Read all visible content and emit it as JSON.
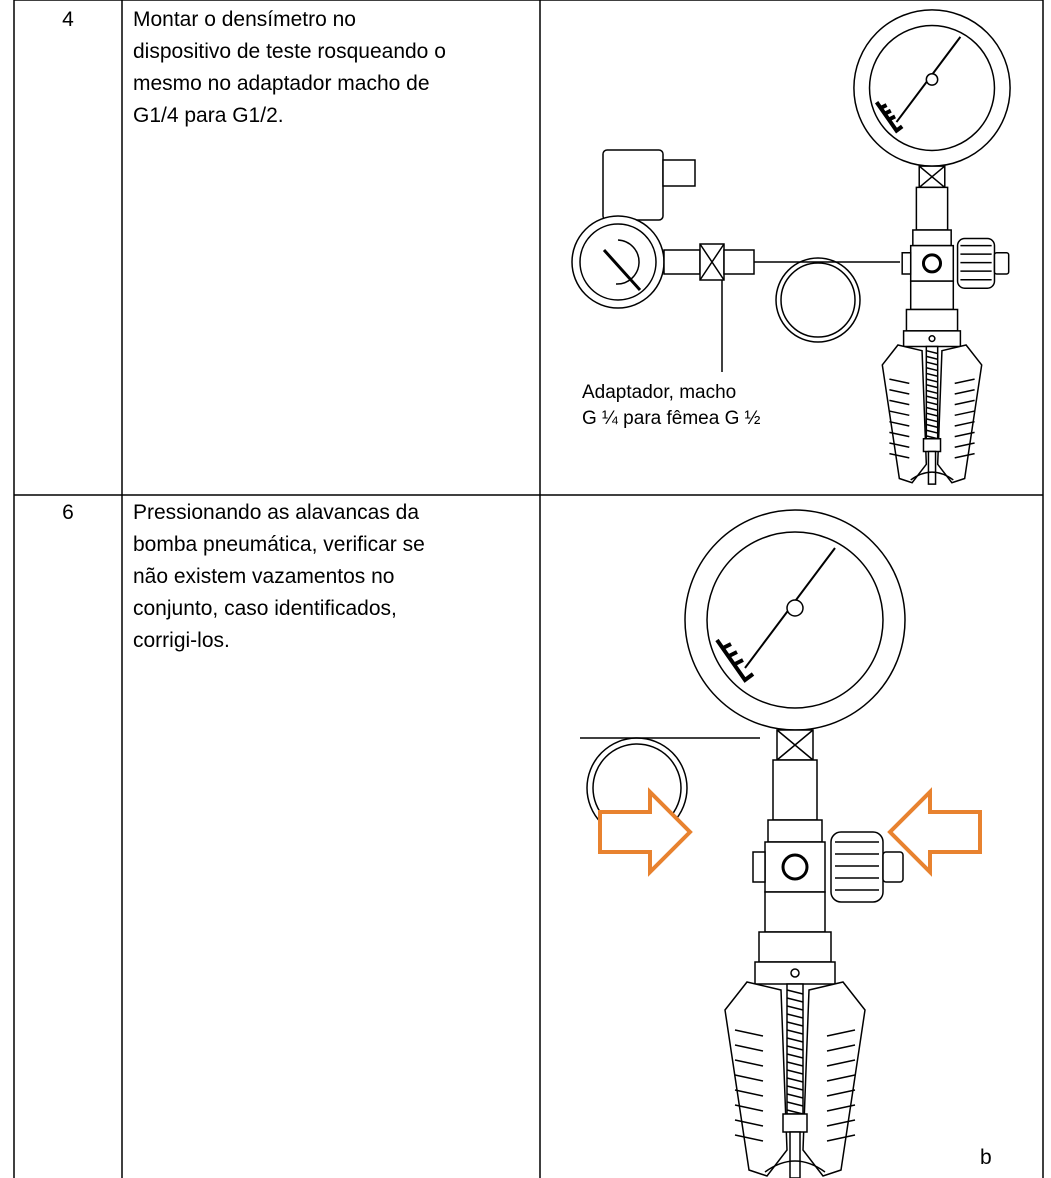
{
  "rows": [
    {
      "step": "4",
      "text": [
        "Montar o densímetro no",
        "dispositivo de teste rosqueando o",
        "mesmo no adaptador macho de",
        "G1/4 para G1/2."
      ],
      "callout": [
        "Adaptador, macho",
        "G ¼ para fêmea G ½"
      ]
    },
    {
      "step": "6",
      "text": [
        "Pressionando as alavancas da",
        "bomba pneumática, verificar se",
        "não existem vazamentos no",
        "conjunto, caso identificados,",
        "corrigi-los."
      ],
      "mark": "b"
    }
  ]
}
